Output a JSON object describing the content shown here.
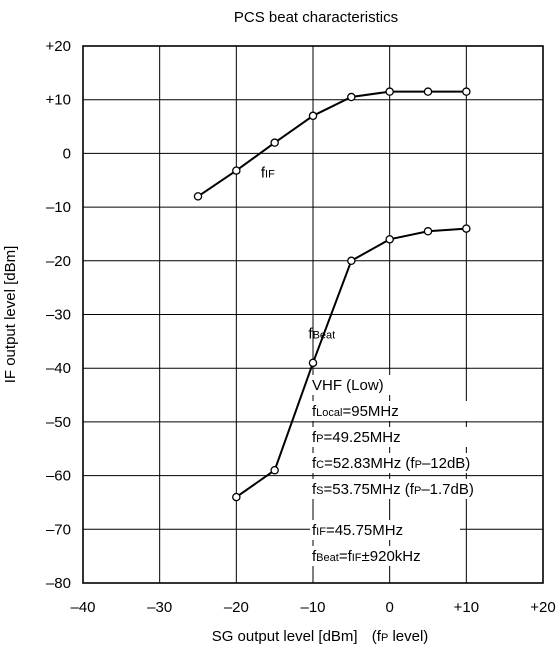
{
  "chart_data": {
    "type": "line",
    "title": "PCS beat characteristics",
    "xlabel": {
      "text": "SG output level [dBm]",
      "note_main": "(f",
      "note_sub": "P",
      "note_tail": " level)"
    },
    "ylabel": "IF output level [dBm]",
    "xlim": [
      -40,
      20
    ],
    "ylim": [
      -80,
      20
    ],
    "x_ticks": [
      -40,
      -30,
      -20,
      -10,
      0,
      10,
      20
    ],
    "x_tick_labels": [
      "–40",
      "–30",
      "–20",
      "–10",
      "0",
      "+10",
      "+20"
    ],
    "y_ticks": [
      20,
      10,
      0,
      -10,
      -20,
      -30,
      -40,
      -50,
      -60,
      -70,
      -80
    ],
    "y_tick_labels": [
      "+20",
      "+10",
      "0",
      "–10",
      "–20",
      "–30",
      "–40",
      "–50",
      "–60",
      "–70",
      "–80"
    ],
    "grid": true,
    "series": [
      {
        "label_main": "f",
        "label_sub": "IF",
        "x": [
          -25,
          -20,
          -15,
          -10,
          -5,
          0,
          5,
          10
        ],
        "y": [
          -8,
          -3.2,
          2,
          7,
          10.5,
          11.5,
          11.5,
          11.5
        ]
      },
      {
        "label_main": "f",
        "label_sub": "Beat",
        "x": [
          -20,
          -15,
          -10,
          -5,
          0,
          5,
          10
        ],
        "y": [
          -64,
          -59,
          -39,
          -20,
          -16,
          -14.5,
          -14
        ]
      }
    ],
    "annotation": [
      [
        {
          "t": "VHF (Low)"
        }
      ],
      [
        {
          "t": "f"
        },
        {
          "t": "Local",
          "sub": true
        },
        {
          "t": "=95MHz"
        }
      ],
      [
        {
          "t": "f"
        },
        {
          "t": "P",
          "sub": true
        },
        {
          "t": "=49.25MHz"
        }
      ],
      [
        {
          "t": "f"
        },
        {
          "t": "C",
          "sub": true
        },
        {
          "t": "=52.83MHz (f"
        },
        {
          "t": "P",
          "sub": true
        },
        {
          "t": "–12dB)"
        }
      ],
      [
        {
          "t": "f"
        },
        {
          "t": "S",
          "sub": true
        },
        {
          "t": "=53.75MHz (f"
        },
        {
          "t": "P",
          "sub": true
        },
        {
          "t": "–1.7dB)"
        }
      ],
      [
        {
          "t": "f"
        },
        {
          "t": "IF",
          "sub": true
        },
        {
          "t": "=45.75MHz"
        }
      ],
      [
        {
          "t": "f"
        },
        {
          "t": "Beat",
          "sub": true
        },
        {
          "t": "=f"
        },
        {
          "t": "IF",
          "sub": true
        },
        {
          "t": "±920kHz"
        }
      ]
    ]
  }
}
